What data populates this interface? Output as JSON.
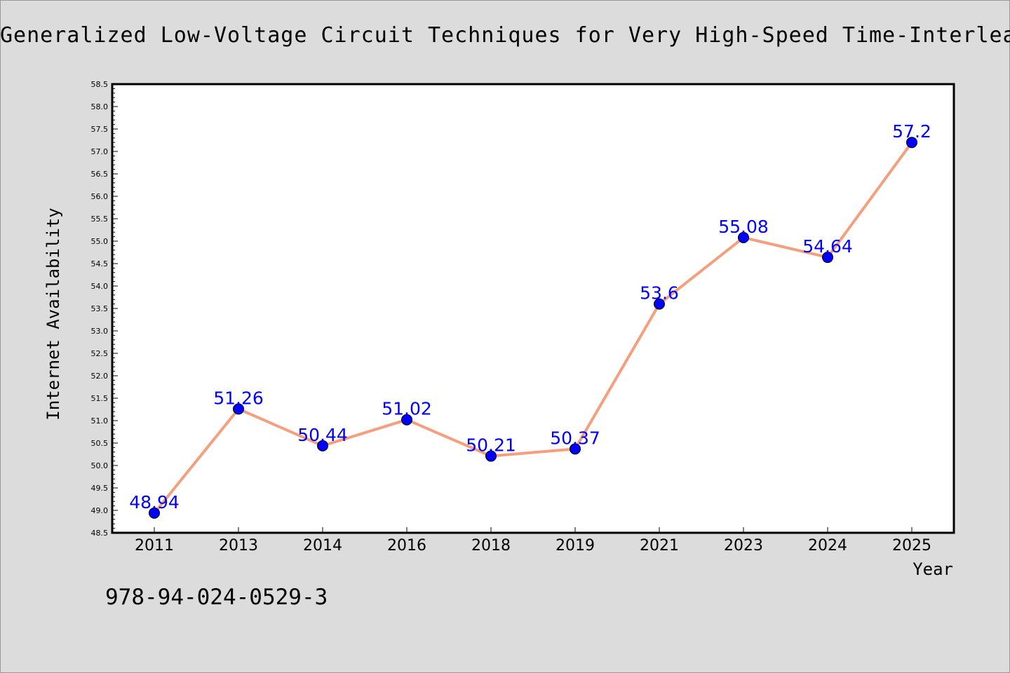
{
  "title": "Generalized Low-Voltage Circuit Techniques for Very High-Speed Time-Interleaved",
  "footnote": "978-94-024-0529-3",
  "chart_data": {
    "type": "line",
    "title": "Generalized Low-Voltage Circuit Techniques for Very High-Speed Time-Interleaved",
    "xlabel": "Year",
    "ylabel": "Internet Availability",
    "categories": [
      "2011",
      "2013",
      "2014",
      "2016",
      "2018",
      "2019",
      "2021",
      "2023",
      "2024",
      "2025"
    ],
    "series": [
      {
        "values": [
          48.94,
          51.26,
          50.44,
          51.02,
          50.21,
          50.37,
          53.6,
          55.08,
          54.64,
          57.2
        ],
        "labels": [
          "48.94",
          "51.26",
          "50.44",
          "51.02",
          "50.21",
          "50.37",
          "53.6",
          "55.08",
          "54.64",
          "57.2"
        ]
      }
    ],
    "ylim": [
      48.5,
      58.5
    ],
    "yticks": [
      "48.5",
      "49.0",
      "49.5",
      "50.0",
      "50.5",
      "51.0",
      "51.5",
      "52.0",
      "52.5",
      "53.0",
      "53.5",
      "54.0",
      "54.5",
      "55.0",
      "55.5",
      "56.0",
      "56.5",
      "57.0",
      "57.5",
      "58.0",
      "58.5"
    ],
    "grid": false,
    "colors": {
      "line": "#f4a07f",
      "marker": "#0000ff",
      "label": "#0000ff",
      "background": "#dcdcdc",
      "plot_background": "#ffffff"
    }
  }
}
